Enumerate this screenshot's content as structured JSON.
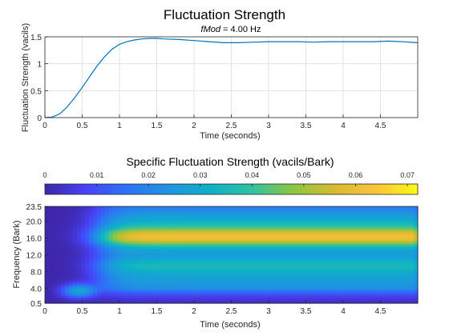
{
  "chart_data": [
    {
      "type": "line",
      "title": "Fluctuation Strength",
      "subtitle_italic": "fMod",
      "subtitle_rest": " = 4.00 Hz",
      "xlabel": "Time (seconds)",
      "ylabel": "Fluctuation Strength (vacils)",
      "xlim": [
        0,
        5
      ],
      "ylim": [
        0,
        1.5
      ],
      "grid": true,
      "line_color": "#0072BD",
      "xticks": [
        "0",
        "0.5",
        "1",
        "1.5",
        "2",
        "2.5",
        "3",
        "3.5",
        "4",
        "4.5"
      ],
      "xtick_values": [
        0,
        0.5,
        1,
        1.5,
        2,
        2.5,
        3,
        3.5,
        4,
        4.5
      ],
      "yticks": [
        "0",
        "0.5",
        "1",
        "1.5"
      ],
      "ytick_values": [
        0,
        0.5,
        1,
        1.5
      ],
      "x": [
        0,
        0.1,
        0.2,
        0.3,
        0.4,
        0.5,
        0.6,
        0.7,
        0.8,
        0.9,
        1.0,
        1.1,
        1.2,
        1.3,
        1.4,
        1.5,
        1.6,
        1.8,
        2.0,
        2.2,
        2.4,
        2.6,
        2.8,
        3.0,
        3.2,
        3.4,
        3.6,
        3.8,
        4.0,
        4.2,
        4.4,
        4.6,
        4.8,
        5.0
      ],
      "y": [
        0,
        0.01,
        0.07,
        0.2,
        0.37,
        0.56,
        0.76,
        0.96,
        1.13,
        1.27,
        1.36,
        1.41,
        1.44,
        1.46,
        1.47,
        1.47,
        1.46,
        1.45,
        1.43,
        1.41,
        1.39,
        1.39,
        1.4,
        1.41,
        1.41,
        1.41,
        1.4,
        1.41,
        1.41,
        1.41,
        1.41,
        1.42,
        1.41,
        1.39
      ]
    },
    {
      "type": "heatmap",
      "title": "Specific Fluctuation Strength (vacils/Bark)",
      "xlabel": "Time (seconds)",
      "ylabel": "Frequency (Bark)",
      "xlim": [
        0,
        5
      ],
      "ylim": [
        0.5,
        23.5
      ],
      "colorbar": {
        "location": "top",
        "limits": [
          0,
          0.072
        ],
        "ticks": [
          "0",
          "0.01",
          "0.02",
          "0.03",
          "0.04",
          "0.05",
          "0.06",
          "0.07"
        ],
        "tick_values": [
          0,
          0.01,
          0.02,
          0.03,
          0.04,
          0.05,
          0.06,
          0.07
        ]
      },
      "xticks": [
        "0",
        "0.5",
        "1",
        "1.5",
        "2",
        "2.5",
        "3",
        "3.5",
        "4",
        "4.5"
      ],
      "xtick_values": [
        0,
        0.5,
        1,
        1.5,
        2,
        2.5,
        3,
        3.5,
        4,
        4.5
      ],
      "yticks": [
        "0.5",
        "4.0",
        "8.0",
        "12.0",
        "16.0",
        "20.0",
        "23.5"
      ],
      "ytick_values": [
        0.5,
        4,
        8,
        12,
        16,
        20,
        23.5
      ],
      "colormap_stops": [
        "#3e26a8",
        "#4743f8",
        "#2c74f5",
        "#1f94e0",
        "#0db0c8",
        "#31c2a1",
        "#8cc63f",
        "#d8ba31",
        "#fcc43a",
        "#f9fb15"
      ],
      "frequency_profile": {
        "bark": [
          0.5,
          2.0,
          3.0,
          4.0,
          5.5,
          7.0,
          8.5,
          9.5,
          10.5,
          12.0,
          13.5,
          14.5,
          15.5,
          16.5,
          17.5,
          18.5,
          20.0,
          21.0,
          22.5,
          23.5
        ],
        "value": [
          0.002,
          0.006,
          0.012,
          0.022,
          0.026,
          0.028,
          0.033,
          0.036,
          0.032,
          0.026,
          0.03,
          0.042,
          0.058,
          0.062,
          0.056,
          0.042,
          0.032,
          0.028,
          0.022,
          0.018
        ]
      },
      "onset_seconds": 0.75,
      "onset_blob": {
        "time": 0.45,
        "bark": 3.5,
        "value": 0.028
      }
    }
  ]
}
